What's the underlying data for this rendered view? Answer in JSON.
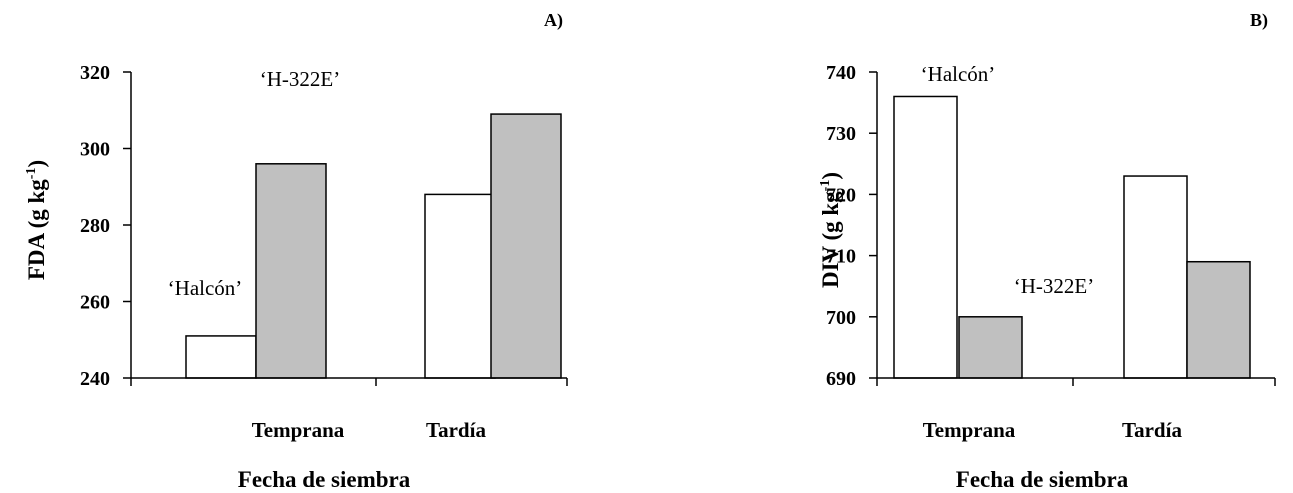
{
  "chart_data": [
    {
      "type": "bar",
      "panel": "A)",
      "categories": [
        "Temprana",
        "Tardía"
      ],
      "xlabel": "Fecha de siembra",
      "ylabel_main": "FDA (g kg",
      "ylabel_sup": "-1",
      "ylabel_close": ")",
      "ylim": [
        240,
        320
      ],
      "yticks": [
        240,
        260,
        280,
        300,
        320
      ],
      "series": [
        {
          "name": "‘Halcón’",
          "color": "#ffffff",
          "values": [
            251,
            288
          ]
        },
        {
          "name": "‘H-322E’",
          "color": "#c0c0c0",
          "values": [
            296,
            309
          ]
        }
      ],
      "annotations": [
        {
          "text": "‘Halcón’",
          "series": 0,
          "category": 0
        },
        {
          "text": "‘H-322E’",
          "series": 1,
          "category": 0
        }
      ],
      "grid": false
    },
    {
      "type": "bar",
      "panel": "B)",
      "categories": [
        "Temprana",
        "Tardía"
      ],
      "xlabel": "Fecha de siembra",
      "ylabel_main": "DIV (g kg",
      "ylabel_sup": "-1",
      "ylabel_close": ")",
      "ylim": [
        690,
        740
      ],
      "yticks": [
        690,
        700,
        710,
        720,
        730,
        740
      ],
      "series": [
        {
          "name": "‘Halcón’",
          "color": "#ffffff",
          "values": [
            736,
            723
          ]
        },
        {
          "name": "‘H-322E’",
          "color": "#c0c0c0",
          "values": [
            700,
            709
          ]
        }
      ],
      "annotations": [
        {
          "text": "‘Halcón’",
          "series": 0,
          "category": 0
        },
        {
          "text": "‘H-322E’",
          "series": 1,
          "category": 0
        }
      ],
      "grid": false
    }
  ]
}
